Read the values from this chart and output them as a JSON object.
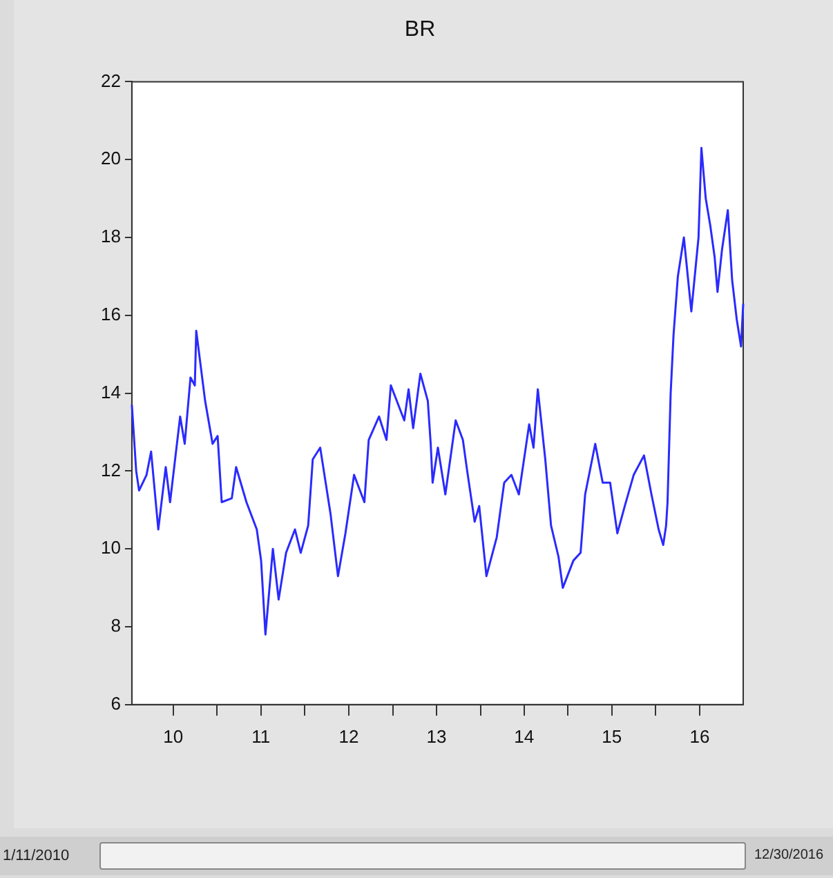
{
  "chart_data": {
    "type": "line",
    "title": "BR",
    "xlim": [
      "2010-01-11",
      "2016-12-30"
    ],
    "xticks": [
      {
        "value": "2010-07-02",
        "label": "10"
      },
      {
        "value": "2011-01-01",
        "label": null
      },
      {
        "value": "2011-07-02",
        "label": "11"
      },
      {
        "value": "2012-01-01",
        "label": null
      },
      {
        "value": "2012-07-02",
        "label": "12"
      },
      {
        "value": "2013-01-01",
        "label": null
      },
      {
        "value": "2013-07-02",
        "label": "13"
      },
      {
        "value": "2014-01-01",
        "label": null
      },
      {
        "value": "2014-07-02",
        "label": "14"
      },
      {
        "value": "2015-01-01",
        "label": null
      },
      {
        "value": "2015-07-02",
        "label": "15"
      },
      {
        "value": "2016-01-01",
        "label": null
      },
      {
        "value": "2016-07-02",
        "label": "16"
      }
    ],
    "ylim": [
      6,
      22
    ],
    "yticks": [
      6,
      8,
      10,
      12,
      14,
      16,
      18,
      20,
      22
    ],
    "grid": false,
    "legend": false,
    "marker": "none",
    "line_style": "solid",
    "annotations": [
      "1/11/2010",
      "12/30/2016"
    ],
    "series": [
      {
        "color": "#2a2aff",
        "x": [
          "2010-01-11",
          "2010-01-29",
          "2010-02-10",
          "2010-03-13",
          "2010-04-01",
          "2010-05-01",
          "2010-06-01",
          "2010-06-19",
          "2010-07-31",
          "2010-08-19",
          "2010-09-12",
          "2010-09-30",
          "2010-10-06",
          "2010-11-12",
          "2010-12-13",
          "2011-01-03",
          "2011-01-20",
          "2011-03-03",
          "2011-03-21",
          "2011-05-03",
          "2011-06-15",
          "2011-07-03",
          "2011-07-21",
          "2011-08-21",
          "2011-09-14",
          "2011-10-15",
          "2011-11-21",
          "2011-12-15",
          "2012-01-15",
          "2012-02-03",
          "2012-03-05",
          "2012-04-17",
          "2012-05-18",
          "2012-06-18",
          "2012-07-24",
          "2012-09-05",
          "2012-09-23",
          "2012-11-05",
          "2012-12-06",
          "2012-12-24",
          "2013-02-18",
          "2013-03-08",
          "2013-03-27",
          "2013-04-26",
          "2013-05-27",
          "2013-06-08",
          "2013-06-16",
          "2013-07-08",
          "2013-08-08",
          "2013-09-20",
          "2013-10-20",
          "2013-11-07",
          "2013-12-08",
          "2013-12-27",
          "2014-01-26",
          "2014-03-10",
          "2014-04-10",
          "2014-05-10",
          "2014-06-10",
          "2014-07-23",
          "2014-08-10",
          "2014-08-28",
          "2014-09-28",
          "2014-10-22",
          "2014-11-22",
          "2014-12-10",
          "2015-01-23",
          "2015-02-22",
          "2015-03-13",
          "2015-04-24",
          "2015-05-25",
          "2015-06-25",
          "2015-07-25",
          "2015-08-25",
          "2015-10-01",
          "2015-11-13",
          "2015-12-14",
          "2016-01-13",
          "2016-02-01",
          "2016-02-13",
          "2016-02-19",
          "2016-03-03",
          "2016-03-15",
          "2016-04-02",
          "2016-04-27",
          "2016-05-28",
          "2016-06-27",
          "2016-07-09",
          "2016-07-27",
          "2016-08-15",
          "2016-09-02",
          "2016-09-14",
          "2016-10-03",
          "2016-10-27",
          "2016-11-14",
          "2016-12-03",
          "2016-12-21",
          "2016-12-30"
        ],
        "values": [
          13.7,
          12.0,
          11.5,
          11.9,
          12.5,
          10.5,
          12.1,
          11.2,
          13.4,
          12.7,
          14.4,
          14.2,
          15.6,
          13.8,
          12.7,
          12.9,
          11.2,
          11.3,
          12.1,
          11.2,
          10.5,
          9.7,
          7.8,
          10.0,
          8.7,
          9.9,
          10.5,
          9.9,
          10.6,
          12.3,
          12.6,
          10.9,
          9.3,
          10.4,
          11.9,
          11.2,
          12.8,
          13.4,
          12.8,
          14.2,
          13.3,
          14.1,
          13.1,
          14.5,
          13.8,
          12.7,
          11.7,
          12.6,
          11.4,
          13.3,
          12.8,
          12.0,
          10.7,
          11.1,
          9.3,
          10.3,
          11.7,
          11.9,
          11.4,
          13.2,
          12.6,
          14.1,
          12.3,
          10.6,
          9.8,
          9.0,
          9.7,
          9.9,
          11.4,
          12.7,
          11.7,
          11.7,
          10.4,
          11.1,
          11.9,
          12.4,
          11.4,
          10.5,
          10.1,
          10.6,
          11.2,
          14.0,
          15.5,
          17.0,
          18.0,
          16.1,
          18.0,
          20.3,
          19.0,
          18.3,
          17.5,
          16.6,
          17.7,
          18.7,
          16.9,
          15.9,
          15.2,
          16.3
        ]
      }
    ]
  }
}
